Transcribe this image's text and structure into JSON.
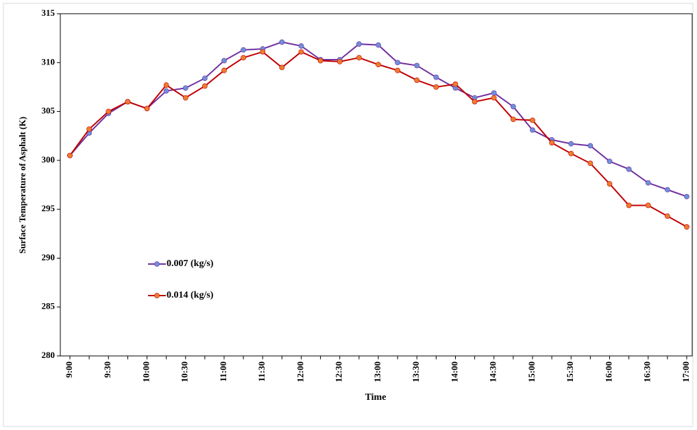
{
  "chart_data": {
    "type": "line",
    "x_label": "Time",
    "y_label": "Surface Temperature of Asphalt (K)",
    "categories": [
      "9:00",
      null,
      "9:30",
      null,
      "10:00",
      null,
      "10:30",
      null,
      "11:00",
      null,
      "11:30",
      null,
      "12:00",
      null,
      "12:30",
      null,
      "13:00",
      null,
      "13:30",
      null,
      "14:00",
      null,
      "14:30",
      null,
      "15:00",
      null,
      "15:30",
      null,
      "16:00",
      null,
      "16:30",
      null,
      "17:00"
    ],
    "series": [
      {
        "name": "0.007 (kg/s)",
        "color": "#7030a0",
        "marker_color": "#6f8fd8",
        "values": [
          300.5,
          302.8,
          304.8,
          306.0,
          305.3,
          307.1,
          307.4,
          308.4,
          310.2,
          311.3,
          311.4,
          312.1,
          311.7,
          310.3,
          310.3,
          311.9,
          311.8,
          310.0,
          309.7,
          308.5,
          307.4,
          306.4,
          306.9,
          305.5,
          303.1,
          302.1,
          301.7,
          301.5,
          299.9,
          299.1,
          297.7,
          297.0,
          296.3
        ]
      },
      {
        "name": "0.014 (kg/s)",
        "color": "#c00000",
        "marker_color": "#ed7d31",
        "values": [
          300.5,
          303.2,
          305.0,
          306.0,
          305.3,
          307.7,
          306.4,
          307.6,
          309.2,
          310.5,
          311.1,
          309.5,
          311.1,
          310.2,
          310.1,
          310.5,
          309.8,
          309.2,
          308.2,
          307.5,
          307.8,
          306.0,
          306.4,
          304.2,
          304.1,
          301.8,
          300.7,
          299.7,
          297.6,
          295.4,
          295.4,
          294.3,
          293.2
        ]
      }
    ],
    "ylim": [
      280,
      315
    ],
    "yticks": [
      280,
      285,
      290,
      295,
      300,
      305,
      310,
      315
    ]
  }
}
